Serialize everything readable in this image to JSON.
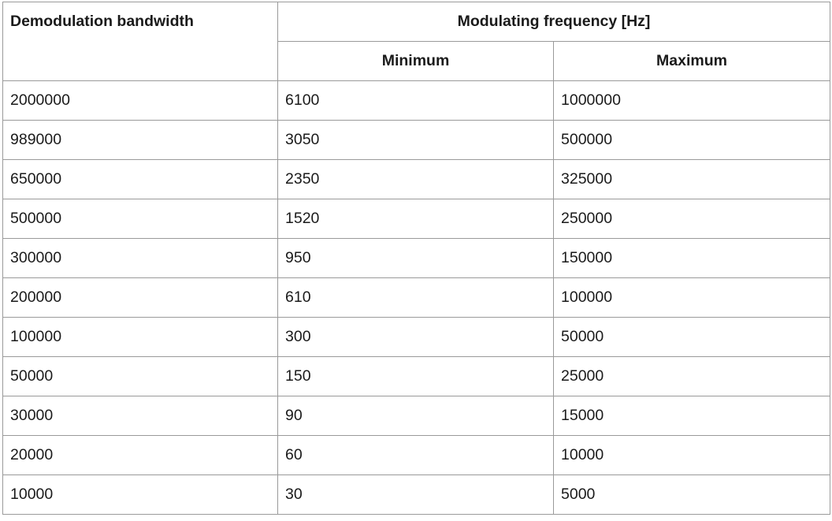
{
  "table": {
    "headers": {
      "col1": "Demodulation bandwidth",
      "group": "Modulating frequency [Hz]",
      "sub": [
        "Minimum",
        "Maximum"
      ]
    },
    "rows": [
      [
        "2000000",
        "6100",
        "1000000"
      ],
      [
        "989000",
        "3050",
        "500000"
      ],
      [
        "650000",
        "2350",
        "325000"
      ],
      [
        "500000",
        "1520",
        "250000"
      ],
      [
        "300000",
        "950",
        "150000"
      ],
      [
        "200000",
        "610",
        "100000"
      ],
      [
        "100000",
        "300",
        "50000"
      ],
      [
        "50000",
        "150",
        "25000"
      ],
      [
        "30000",
        "90",
        "15000"
      ],
      [
        "20000",
        "60",
        "10000"
      ],
      [
        "10000",
        "30",
        "5000"
      ]
    ]
  }
}
